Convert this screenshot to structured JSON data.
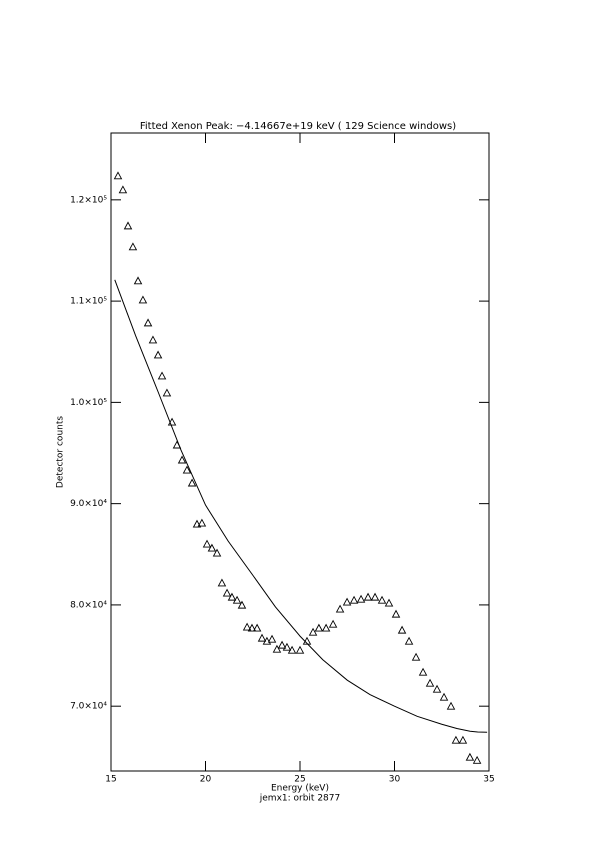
{
  "chart_data": {
    "type": "scatter",
    "title": "Fitted Xenon Peak:  −4.14667e+19 keV (         129 Science windows)",
    "x_label": "Energy (keV)",
    "subtitle": "jemx1: orbit 2877",
    "y_label": "Detector counts",
    "xlim": [
      15,
      35
    ],
    "xticks": [
      15,
      20,
      25,
      30,
      35
    ],
    "ylim": [
      63600,
      126600
    ],
    "yticks": [
      {
        "value": 70000,
        "label": "7.0×10⁴"
      },
      {
        "value": 80000,
        "label": "8.0×10⁴"
      },
      {
        "value": 90000,
        "label": "9.0×10⁴"
      },
      {
        "value": 100000,
        "label": "1.0×10⁵"
      },
      {
        "value": 110000,
        "label": "1.1×10⁵"
      },
      {
        "value": 120000,
        "label": "1.2×10⁵"
      }
    ],
    "series": [
      {
        "kind": "points",
        "color": "#000000",
        "x": [
          15.37,
          15.63,
          15.9,
          16.16,
          16.43,
          16.69,
          16.96,
          17.22,
          17.49,
          17.7,
          17.96,
          18.23,
          18.49,
          18.76,
          19.02,
          19.29,
          19.55,
          19.81,
          20.08,
          20.34,
          20.61,
          20.87,
          21.14,
          21.4,
          21.67,
          21.93,
          22.2,
          22.46,
          22.73,
          22.99,
          23.25,
          23.52,
          23.78,
          24.05,
          24.31,
          24.58,
          25.0,
          25.37,
          25.69,
          26.0,
          26.38,
          26.75,
          27.12,
          27.49,
          27.86,
          28.23,
          28.6,
          28.97,
          29.34,
          29.71,
          30.08,
          30.4,
          30.77,
          31.14,
          31.51,
          31.88,
          32.25,
          32.62,
          32.99,
          33.25,
          33.62,
          33.99,
          34.37
        ],
        "values": [
          122370,
          120990,
          117430,
          115360,
          112000,
          110120,
          107850,
          106170,
          104680,
          102610,
          100930,
          98060,
          95790,
          94310,
          93320,
          92040,
          87980,
          88080,
          86010,
          85610,
          85120,
          82170,
          81170,
          80770,
          80470,
          79980,
          77810,
          77710,
          77710,
          76720,
          76420,
          76620,
          75630,
          76030,
          75830,
          75530,
          75530,
          76420,
          77310,
          77710,
          77710,
          78100,
          79590,
          80280,
          80470,
          80570,
          80770,
          80770,
          80470,
          80180,
          79090,
          77510,
          76420,
          74840,
          73360,
          72270,
          71680,
          70890,
          70000,
          66640,
          66640,
          64960,
          64660
        ]
      },
      {
        "kind": "line",
        "color": "#000000",
        "x": [
          15.2,
          16.3,
          17.5,
          18.7,
          20,
          21.2,
          22.5,
          23.7,
          25,
          26.2,
          27.5,
          28.7,
          30,
          31.2,
          32.5,
          33.3,
          34,
          34.4,
          34.9
        ],
        "values": [
          112100,
          106600,
          101000,
          95300,
          89860,
          86300,
          82940,
          79800,
          76920,
          74600,
          72570,
          71150,
          70000,
          69000,
          68220,
          67800,
          67530,
          67450,
          67430
        ]
      }
    ]
  }
}
